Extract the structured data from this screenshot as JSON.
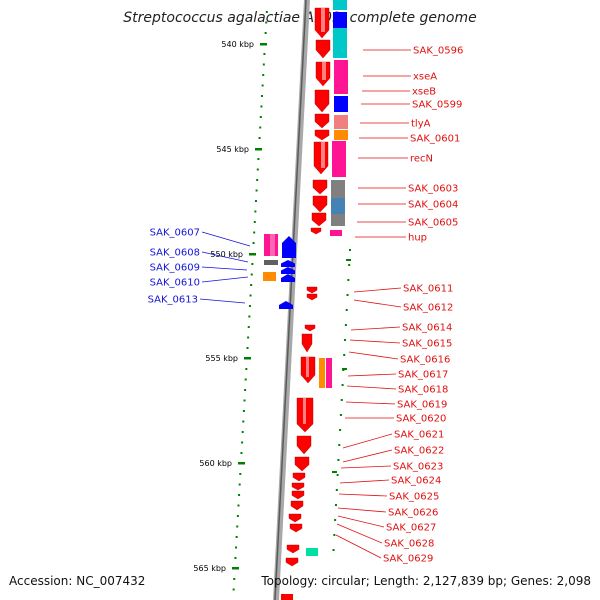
{
  "title": "Streptococcus agalactiae A909, complete genome",
  "footer": {
    "accession": "Accession: NC_007432",
    "stats": "Topology: circular; Length: 2,127,839 bp; Genes: 2,098"
  },
  "scale": {
    "unit": "kbp",
    "ticks": [
      540,
      545,
      550,
      555,
      560,
      565
    ]
  },
  "colors": {
    "forward_label": "#e01010",
    "reverse_label": "#1414d8",
    "gene_red": "#ff0000",
    "gene_blue": "#0000ff",
    "backbone": "#808080",
    "tick": "#008000"
  },
  "right_labels": [
    "SAK_0596",
    "xseA",
    "xseB",
    "SAK_0599",
    "tlyA",
    "SAK_0601",
    "recN",
    "SAK_0603",
    "SAK_0604",
    "SAK_0605",
    "hup",
    "SAK_0611",
    "SAK_0612",
    "SAK_0614",
    "SAK_0615",
    "SAK_0616",
    "SAK_0617",
    "SAK_0618",
    "SAK_0619",
    "SAK_0620",
    "SAK_0621",
    "SAK_0622",
    "SAK_0623",
    "SAK_0624",
    "SAK_0625",
    "SAK_0626",
    "SAK_0627",
    "SAK_0628",
    "SAK_0629"
  ],
  "left_labels": [
    "SAK_0607",
    "SAK_0608",
    "SAK_0609",
    "SAK_0610",
    "SAK_0613"
  ]
}
